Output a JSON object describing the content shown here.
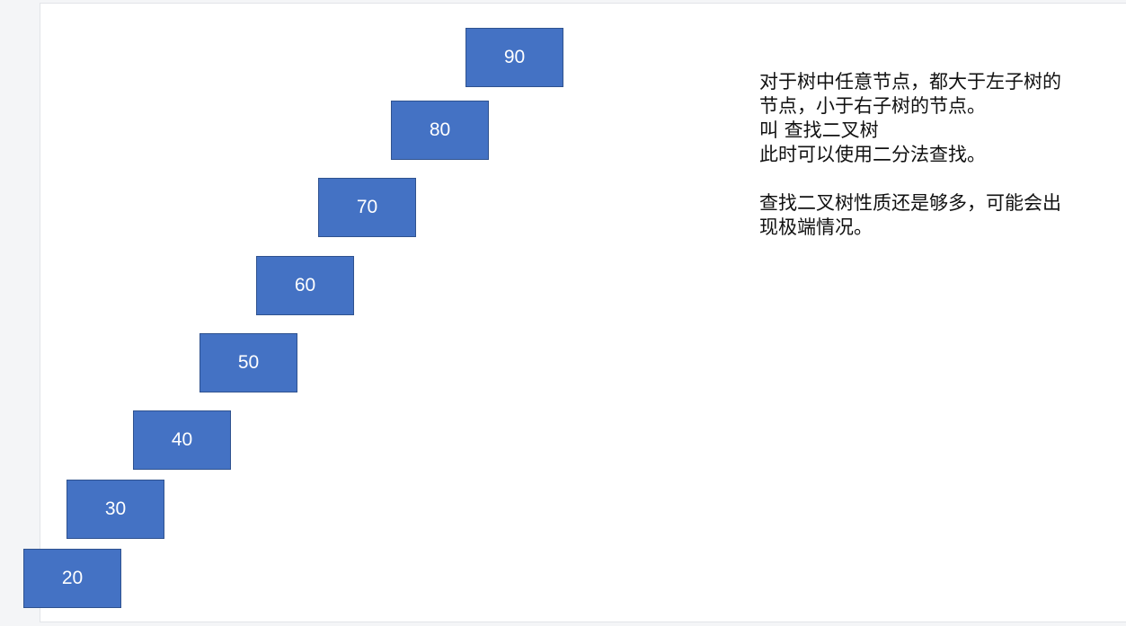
{
  "colors": {
    "node_fill": "#4472c4",
    "node_border": "#2f528f",
    "node_text": "#ffffff",
    "text": "#111111",
    "background": "#ffffff"
  },
  "nodes": [
    "90",
    "80",
    "70",
    "60",
    "50",
    "40",
    "30",
    "20"
  ],
  "note": {
    "paragraph1": [
      "对于树中任意节点，都大于左子树的",
      "节点，小于右子树的节点。",
      "叫 查找二叉树",
      "此时可以使用二分法查找。"
    ],
    "paragraph2": [
      "查找二叉树性质还是够多，可能会出",
      "现极端情况。"
    ]
  }
}
